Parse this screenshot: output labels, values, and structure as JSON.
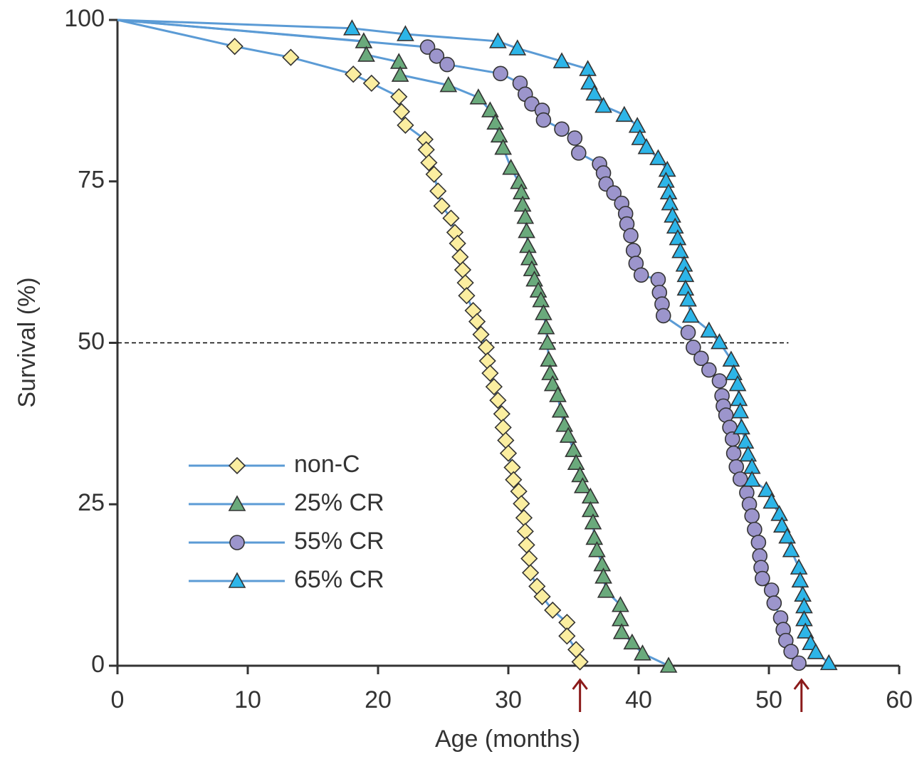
{
  "chart_data": {
    "type": "line",
    "xlabel": "Age (months)",
    "ylabel": "Survival (%)",
    "xlim": [
      0,
      60
    ],
    "ylim": [
      0,
      100
    ],
    "xticks": [
      0,
      10,
      20,
      30,
      40,
      50,
      60
    ],
    "yticks": [
      0,
      25,
      50,
      75,
      100
    ],
    "line_color": "#5b9bd5",
    "legend": "lower left",
    "reference_line": {
      "y": 50,
      "x": [
        0,
        51.5
      ]
    },
    "arrows": [
      35.5,
      52.5
    ],
    "arrow_color": "#8b1a1a",
    "series": [
      {
        "name": "non-C",
        "marker": "diamond",
        "color": "#fbeea0",
        "x": [
          0,
          9.0,
          13.3,
          18.1,
          19.5,
          21.6,
          21.8,
          22.1,
          23.6,
          23.7,
          23.9,
          24.3,
          24.6,
          24.9,
          25.6,
          25.9,
          26.1,
          26.3,
          26.5,
          26.7,
          26.8,
          27.3,
          27.6,
          27.9,
          28.3,
          28.4,
          28.6,
          28.9,
          29.2,
          29.5,
          29.6,
          29.8,
          30.0,
          30.3,
          30.4,
          30.8,
          31.0,
          31.2,
          31.3,
          31.4,
          31.6,
          31.7,
          32.2,
          32.6,
          33.4,
          34.5,
          34.5,
          35.2,
          35.5
        ],
        "values": [
          100,
          95.9,
          94.2,
          91.6,
          90.2,
          88.1,
          85.8,
          83.7,
          81.5,
          79.9,
          77.9,
          76.1,
          73.5,
          71.2,
          69.3,
          67.1,
          65.4,
          63.3,
          61.3,
          59.3,
          57.3,
          55.0,
          53.3,
          51.3,
          49.3,
          47.2,
          45.3,
          43.2,
          41.1,
          39.0,
          36.9,
          34.9,
          32.9,
          30.7,
          28.8,
          27.0,
          25.1,
          22.9,
          20.8,
          18.7,
          16.6,
          14.4,
          12.3,
          10.7,
          8.6,
          6.7,
          4.6,
          2.5,
          0.6
        ]
      },
      {
        "name": "25% CR",
        "marker": "triangle",
        "color": "#6aaa7c",
        "x": [
          0,
          18.9,
          19.1,
          21.6,
          21.7,
          25.4,
          27.7,
          28.6,
          29.0,
          29.3,
          29.6,
          30.2,
          30.8,
          31.0,
          31.1,
          31.3,
          31.4,
          31.5,
          31.6,
          31.8,
          32.0,
          32.3,
          32.5,
          32.7,
          32.9,
          33.0,
          33.1,
          33.2,
          33.4,
          33.8,
          34.0,
          34.3,
          34.6,
          35.0,
          35.2,
          35.5,
          35.7,
          36.3,
          36.3,
          36.5,
          36.6,
          36.8,
          37.2,
          37.3,
          37.5,
          38.6,
          38.6,
          38.7,
          39.5,
          40.3,
          42.3
        ],
        "values": [
          100,
          96.7,
          94.6,
          93.5,
          91.5,
          89.9,
          88.0,
          86.0,
          84.1,
          82.1,
          80.2,
          77.1,
          74.9,
          73.3,
          71.4,
          69.5,
          67.3,
          65.0,
          63.1,
          61.4,
          59.8,
          58.1,
          56.6,
          54.6,
          52.4,
          50.0,
          47.4,
          45.3,
          43.6,
          41.9,
          39.5,
          37.3,
          35.6,
          33.4,
          31.4,
          29.5,
          27.8,
          26.2,
          24.1,
          22.2,
          19.8,
          17.9,
          15.7,
          13.8,
          11.6,
          9.4,
          7.2,
          5.2,
          3.6,
          1.9,
          0
        ]
      },
      {
        "name": "55% CR",
        "marker": "circle",
        "color": "#9c95cc",
        "x": [
          0,
          23.8,
          24.5,
          25.3,
          29.4,
          30.9,
          31.3,
          31.8,
          32.6,
          32.7,
          34.1,
          35.1,
          35.4,
          37.0,
          37.3,
          37.5,
          38.1,
          38.7,
          39.0,
          39.1,
          39.4,
          39.6,
          39.8,
          40.2,
          41.5,
          41.6,
          41.8,
          41.9,
          43.8,
          44.2,
          44.8,
          45.4,
          46.2,
          46.4,
          46.5,
          46.7,
          47.0,
          47.2,
          47.3,
          47.5,
          47.8,
          48.3,
          48.5,
          48.7,
          48.9,
          49.2,
          49.3,
          49.4,
          49.5,
          50.2,
          50.4,
          50.9,
          51.1,
          51.3,
          51.7,
          52.3
        ],
        "values": [
          100,
          95.8,
          94.4,
          93.1,
          91.7,
          90.2,
          88.5,
          87.0,
          86.0,
          84.5,
          83.1,
          81.7,
          79.4,
          77.7,
          76.3,
          74.6,
          73.2,
          71.6,
          70.0,
          68.4,
          66.6,
          64.3,
          62.3,
          60.5,
          59.8,
          57.8,
          56.0,
          54.2,
          51.6,
          49.3,
          47.6,
          45.8,
          44.1,
          41.8,
          40.2,
          38.8,
          36.9,
          35.1,
          32.9,
          30.8,
          28.9,
          26.8,
          25.0,
          23.2,
          21.1,
          19.1,
          17.0,
          15.2,
          13.5,
          11.7,
          9.7,
          7.4,
          5.6,
          3.9,
          2.2,
          0.4
        ]
      },
      {
        "name": "65% CR",
        "marker": "triangle",
        "color": "#2db5e8",
        "x": [
          0,
          18.0,
          22.1,
          29.2,
          30.7,
          34.1,
          36.1,
          36.2,
          36.6,
          37.3,
          38.9,
          39.9,
          40.1,
          40.6,
          41.5,
          42.2,
          42.1,
          42.3,
          42.4,
          42.6,
          42.8,
          43.0,
          43.2,
          43.5,
          43.6,
          43.6,
          43.8,
          44.0,
          45.4,
          46.2,
          47.1,
          47.3,
          47.6,
          47.7,
          47.8,
          47.9,
          48.2,
          48.4,
          48.7,
          48.7,
          49.8,
          50.2,
          50.8,
          51.0,
          51.4,
          51.7,
          52.3,
          52.4,
          52.6,
          52.7,
          52.7,
          52.8,
          53.2,
          53.6,
          54.6
        ],
        "values": [
          100,
          98.7,
          97.8,
          96.7,
          95.6,
          93.6,
          92.4,
          90.3,
          88.6,
          86.7,
          85.3,
          83.6,
          81.7,
          80.3,
          78.6,
          76.8,
          75.1,
          73.3,
          71.6,
          69.7,
          68.0,
          66.2,
          64.2,
          62.1,
          60.5,
          58.4,
          56.7,
          54.2,
          51.9,
          50.1,
          47.4,
          45.3,
          43.6,
          41.3,
          39.4,
          36.9,
          34.7,
          32.7,
          30.8,
          28.8,
          27.2,
          25.4,
          23.5,
          21.7,
          20.0,
          17.9,
          15.2,
          13.2,
          11.0,
          9.2,
          7.2,
          5.3,
          3.5,
          2.1,
          0.4
        ]
      }
    ]
  }
}
